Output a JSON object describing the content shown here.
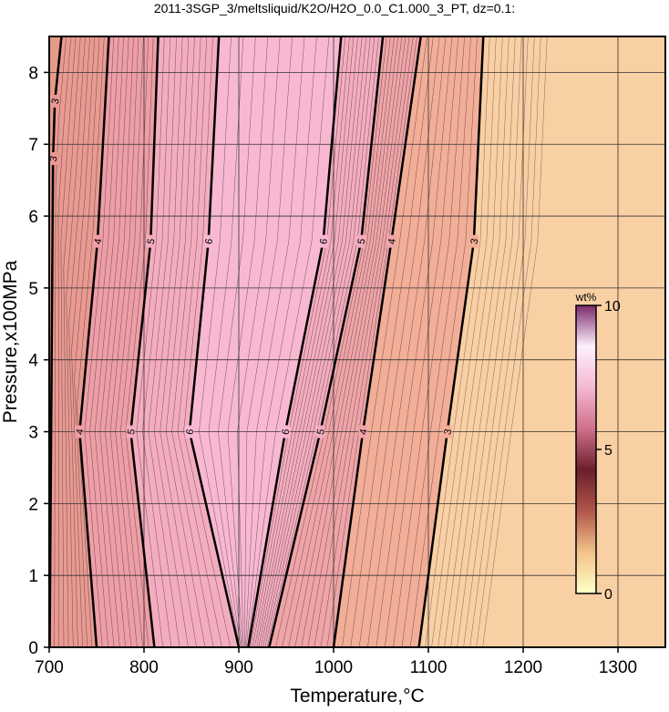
{
  "chart_data": {
    "type": "contour",
    "title": "2011-3SGP_3/meltsliquid/K2O/H2O_0.0_C1.000_3_PT, dz=0.1:",
    "xlabel": "Temperature,°C",
    "ylabel": "Pressure,x100MPa",
    "xlim": [
      700,
      1350
    ],
    "ylim": [
      0,
      8.5
    ],
    "xticks": [
      700,
      800,
      900,
      1000,
      1100,
      1200,
      1300
    ],
    "yticks": [
      0,
      1,
      2,
      3,
      4,
      5,
      6,
      7,
      8
    ],
    "grid": true,
    "contours": [
      {
        "level": 3,
        "x": [
          700.5,
          704,
          706,
          713
        ],
        "y": [
          0,
          6.8,
          7.6,
          8.5
        ]
      },
      {
        "level": 4,
        "x": [
          750,
          732,
          751,
          763
        ],
        "y": [
          0,
          3,
          5.65,
          8.5
        ]
      },
      {
        "level": 5,
        "x": [
          811,
          786,
          807,
          815
        ],
        "y": [
          0,
          3,
          5.65,
          8.5
        ]
      },
      {
        "level": 6,
        "x": [
          900,
          848,
          868,
          879
        ],
        "y": [
          0,
          3,
          5.65,
          8.5
        ]
      },
      {
        "level": 6,
        "x": [
          910,
          949,
          989,
          1008
        ],
        "y": [
          0,
          3,
          5.65,
          8.5
        ]
      },
      {
        "level": 5,
        "x": [
          932,
          986,
          1029,
          1052
        ],
        "y": [
          0,
          3,
          5.65,
          8.5
        ]
      },
      {
        "level": 4,
        "x": [
          1000,
          1031,
          1061,
          1092
        ],
        "y": [
          0,
          3,
          5.65,
          8.5
        ]
      },
      {
        "level": 3,
        "x": [
          1090,
          1120,
          1148,
          1158
        ],
        "y": [
          0,
          3,
          5.65,
          8.5
        ]
      }
    ],
    "region_colors": [
      "#e49a86",
      "#e99a92",
      "#ee9ea6",
      "#f4adc0",
      "#f8b8d2",
      "#f4adc0",
      "#efa4a8",
      "#f3ae98",
      "#f9cfa4"
    ],
    "colorbar": {
      "label": "wt%",
      "lim": [
        0,
        10
      ],
      "ticks": [
        0,
        5,
        10
      ],
      "colors": [
        "#ffffc8",
        "#f2c48a",
        "#b0564a",
        "#6a1f2a",
        "#d0708a",
        "#f4b8d2",
        "#fff0ff",
        "#7a2a6a"
      ]
    }
  }
}
